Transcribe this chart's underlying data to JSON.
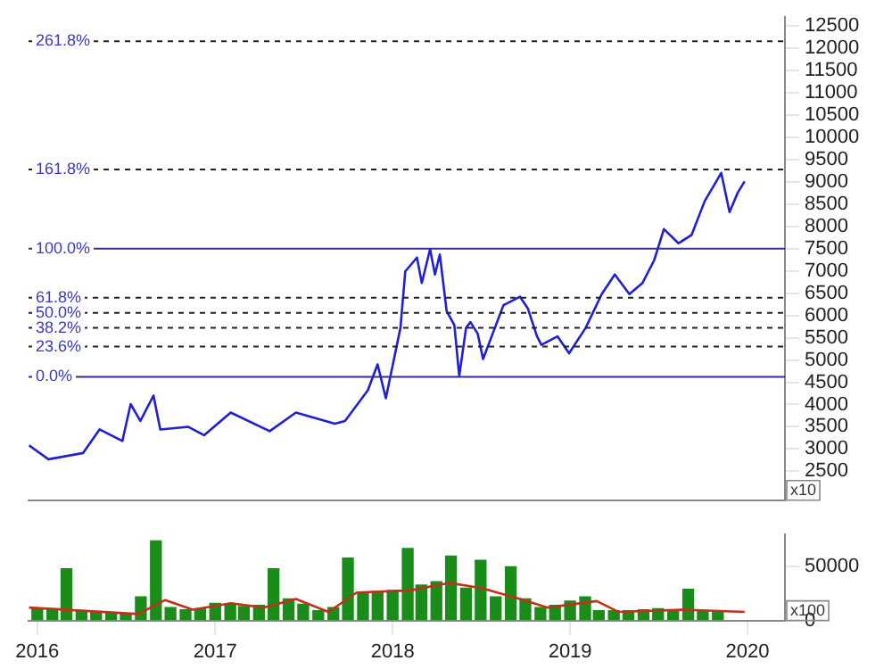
{
  "chart_data": [
    {
      "type": "line",
      "x": [
        "2015-12-15",
        "2016-01-24",
        "2016-04-04",
        "2016-05-08",
        "2016-06-24",
        "2016-07-11",
        "2016-07-31",
        "2016-08-27",
        "2016-09-10",
        "2016-11-06",
        "2016-12-09",
        "2017-02-02",
        "2017-04-23",
        "2017-06-16",
        "2017-09-04",
        "2017-09-25",
        "2017-11-11",
        "2017-12-01",
        "2017-12-18",
        "2018-01-17",
        "2018-01-27",
        "2018-02-20",
        "2018-03-02",
        "2018-03-19",
        "2018-03-29",
        "2018-04-08",
        "2018-04-22",
        "2018-05-08",
        "2018-05-18",
        "2018-06-01",
        "2018-06-10",
        "2018-06-25",
        "2018-07-06",
        "2018-08-17",
        "2018-09-20",
        "2018-10-06",
        "2018-10-25",
        "2018-11-03",
        "2018-12-06",
        "2018-12-30",
        "2019-02-02",
        "2019-03-07",
        "2019-04-03",
        "2019-05-03",
        "2019-05-30",
        "2019-06-23",
        "2019-07-13",
        "2019-08-12",
        "2019-09-08",
        "2019-10-05",
        "2019-11-08",
        "2019-11-25",
        "2019-12-12",
        "2019-12-26"
      ],
      "series": [
        {
          "color": "#2020d0",
          "values": [
            3080,
            2770,
            2910,
            3440,
            3180,
            4010,
            3630,
            4200,
            3440,
            3500,
            3310,
            3820,
            3400,
            3820,
            3570,
            3630,
            4320,
            4900,
            4140,
            5720,
            6990,
            7300,
            6730,
            7490,
            6920,
            7370,
            6100,
            5780,
            4640,
            5720,
            5850,
            5590,
            5020,
            6230,
            6420,
            6160,
            5530,
            5340,
            5530,
            5150,
            5720,
            6480,
            6920,
            6480,
            6730,
            7240,
            7940,
            7620,
            7810,
            8570,
            9200,
            8320,
            8760,
            9010
          ]
        }
      ],
      "xlim": [
        "2015-12-14",
        "2020-03-18"
      ],
      "xticks": [
        "2016",
        "2017",
        "2018",
        "2019",
        "2020"
      ],
      "ylim": [
        1850,
        12700
      ],
      "yticks": [
        2500,
        3000,
        3500,
        4000,
        4500,
        5000,
        5500,
        6000,
        6500,
        7000,
        7500,
        8000,
        8500,
        9000,
        9500,
        10000,
        10500,
        11000,
        11500,
        12000,
        12500
      ],
      "tick_labels": "y",
      "grid": false,
      "legend": false,
      "marker": "none",
      "ref_lines": [
        {
          "axis": "y",
          "value": 12160,
          "color": "#222222",
          "line_style": "dashed"
        },
        {
          "axis": "y",
          "value": 9280,
          "color": "#222222",
          "line_style": "dashed"
        },
        {
          "axis": "y",
          "value": 7500,
          "color": "#303090",
          "line_style": "solid"
        },
        {
          "axis": "y",
          "value": 6400,
          "color": "#222222",
          "line_style": "dashed"
        },
        {
          "axis": "y",
          "value": 6060,
          "color": "#222222",
          "line_style": "dashed"
        },
        {
          "axis": "y",
          "value": 5720,
          "color": "#222222",
          "line_style": "dashed"
        },
        {
          "axis": "y",
          "value": 5300,
          "color": "#222222",
          "line_style": "dashed"
        },
        {
          "axis": "y",
          "value": 4620,
          "color": "#303090",
          "line_style": "solid"
        }
      ],
      "annotations": [
        "x10",
        {
          "text": "261.8%",
          "y": 12160
        },
        {
          "text": "161.8%",
          "y": 9280
        },
        {
          "text": "100.0%",
          "y": 7500
        },
        {
          "text": "61.8%",
          "y": 6400
        },
        {
          "text": "50.0%",
          "y": 6060
        },
        {
          "text": "38.2%",
          "y": 5720
        },
        {
          "text": "23.6%",
          "y": 5300
        },
        {
          "text": "0.0%",
          "y": 4620
        }
      ]
    },
    {
      "type": "bar",
      "x": [
        "2016-01",
        "2016-02",
        "2016-03",
        "2016-04",
        "2016-05",
        "2016-06",
        "2016-07",
        "2016-08",
        "2016-09",
        "2016-10",
        "2016-11",
        "2016-12",
        "2017-01",
        "2017-02",
        "2017-03",
        "2017-04",
        "2017-05",
        "2017-06",
        "2017-07",
        "2017-08",
        "2017-09",
        "2017-10",
        "2017-11",
        "2017-12",
        "2018-01",
        "2018-02",
        "2018-03",
        "2018-04",
        "2018-05",
        "2018-06",
        "2018-07",
        "2018-08",
        "2018-09",
        "2018-10",
        "2018-11",
        "2018-12",
        "2019-01",
        "2019-02",
        "2019-03",
        "2019-04",
        "2019-05",
        "2019-06",
        "2019-07",
        "2019-08",
        "2019-09",
        "2019-10",
        "2019-11"
      ],
      "series": [
        {
          "type": "bar",
          "color": "#1a8c1a",
          "values": [
            11000,
            10000,
            48000,
            9000,
            8000,
            7000,
            6000,
            22000,
            74000,
            12000,
            10000,
            11000,
            16000,
            15000,
            13000,
            14000,
            48000,
            20000,
            15000,
            9000,
            12000,
            58000,
            26000,
            27000,
            28000,
            67000,
            33000,
            36000,
            60000,
            30000,
            56000,
            22000,
            50000,
            20000,
            12000,
            14000,
            18000,
            22000,
            9000,
            9000,
            9000,
            10000,
            11000,
            10000,
            29000,
            9000,
            8000
          ]
        },
        {
          "type": "line",
          "color": "#c0301a",
          "x": [
            "2015-12-15",
            "2016-07-27",
            "2016-09-20",
            "2016-11-16",
            "2017-02-02",
            "2017-04-10",
            "2017-06-16",
            "2017-08-22",
            "2017-10-19",
            "2018-02-06",
            "2018-04-28",
            "2018-07-04",
            "2018-09-20",
            "2018-11-16",
            "2019-02-25",
            "2019-04-10",
            "2019-08-21",
            "2019-12-26"
          ],
          "values": [
            12000,
            6000,
            19000,
            10000,
            16000,
            12000,
            20000,
            8000,
            26000,
            28000,
            35000,
            30000,
            20000,
            12000,
            18000,
            8000,
            10000,
            8000
          ]
        }
      ],
      "xlim": [
        "2015-12-14",
        "2020-03-18"
      ],
      "xticks": [
        "2016",
        "2017",
        "2018",
        "2019",
        "2020"
      ],
      "ylim": [
        0,
        80000
      ],
      "yticks": [
        0,
        50000
      ],
      "grid": false,
      "legend": false,
      "marker": "none",
      "annotations": [
        "x100"
      ]
    }
  ]
}
